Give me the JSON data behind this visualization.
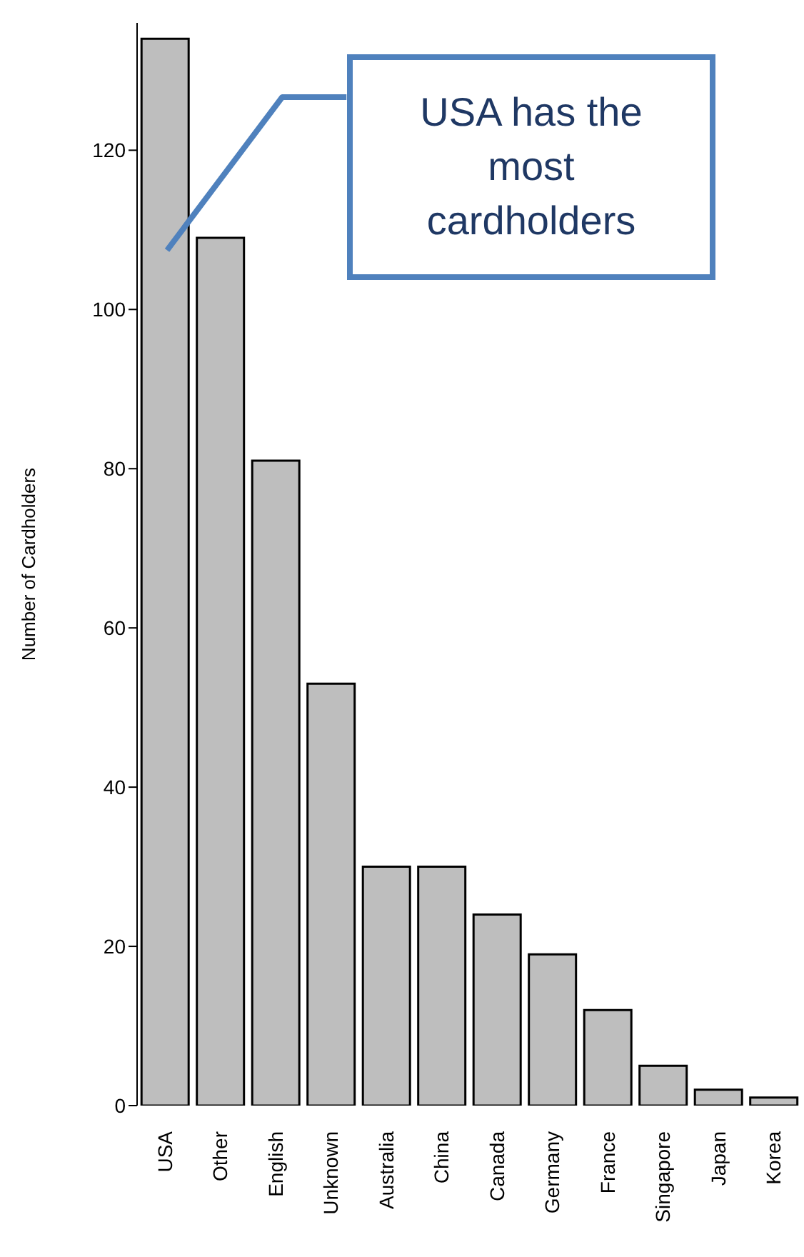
{
  "chart_data": {
    "type": "bar",
    "ylabel": "Number of Cardholders",
    "categories": [
      "USA",
      "Other",
      "English",
      "Unknown",
      "Australia",
      "China",
      "Canada",
      "Germany",
      "France",
      "Singapore",
      "Japan",
      "Korea"
    ],
    "values": [
      134,
      109,
      81,
      53,
      30,
      30,
      24,
      19,
      12,
      5,
      2,
      1
    ],
    "color": "#bebebe",
    "ylim": [
      0,
      136
    ],
    "yticks": [
      0,
      20,
      40,
      60,
      80,
      100,
      120
    ],
    "grid": false,
    "legend": false,
    "annotations": [
      "USA has the most cardholders"
    ]
  }
}
